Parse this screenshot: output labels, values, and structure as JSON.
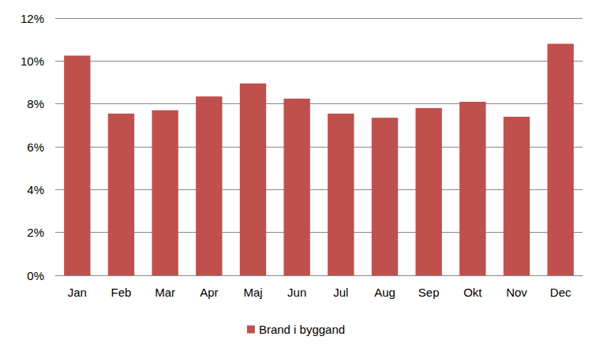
{
  "chart_data": {
    "type": "bar",
    "categories": [
      "Jan",
      "Feb",
      "Mar",
      "Apr",
      "Maj",
      "Jun",
      "Jul",
      "Aug",
      "Sep",
      "Okt",
      "Nov",
      "Dec"
    ],
    "series": [
      {
        "name": "Brand i byggand",
        "color": "#c0504d",
        "values": [
          10.25,
          7.55,
          7.7,
          8.35,
          8.95,
          8.25,
          7.55,
          7.35,
          7.8,
          8.1,
          7.4,
          10.8
        ]
      }
    ],
    "ylim": [
      0,
      12
    ],
    "yticks": [
      {
        "value": 0,
        "label": "0%"
      },
      {
        "value": 2,
        "label": "2%"
      },
      {
        "value": 4,
        "label": "4%"
      },
      {
        "value": 6,
        "label": "6%"
      },
      {
        "value": 8,
        "label": "8%"
      },
      {
        "value": 10,
        "label": "10%"
      },
      {
        "value": 12,
        "label": "12%"
      }
    ],
    "grid": true,
    "legend": "bottom"
  }
}
